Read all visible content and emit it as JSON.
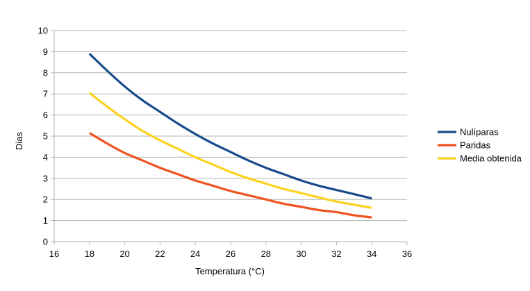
{
  "chart_data": {
    "type": "line",
    "title": "",
    "xlabel": "Temperatura (°C)",
    "ylabel": "Dias",
    "xlim": [
      16,
      36
    ],
    "ylim": [
      0,
      10
    ],
    "xticks": [
      "16",
      "18",
      "20",
      "22",
      "24",
      "26",
      "28",
      "30",
      "32",
      "34",
      "36"
    ],
    "yticks": [
      "0",
      "1",
      "2",
      "3",
      "4",
      "5",
      "6",
      "7",
      "8",
      "9",
      "10"
    ],
    "grid": "horizontal",
    "legend_position": "right",
    "series": [
      {
        "name": "Nulíparas",
        "color": "#174a8b",
        "x": [
          18,
          19,
          20,
          21,
          22,
          23,
          24,
          25,
          26,
          27,
          28,
          29,
          30,
          31,
          32,
          33,
          34
        ],
        "y": [
          8.9,
          8.1,
          7.35,
          6.7,
          6.15,
          5.6,
          5.1,
          4.65,
          4.25,
          3.85,
          3.5,
          3.2,
          2.9,
          2.65,
          2.45,
          2.25,
          2.05
        ]
      },
      {
        "name": "Paridas",
        "color": "#f0521f",
        "x": [
          18,
          19,
          20,
          21,
          22,
          23,
          24,
          25,
          26,
          27,
          28,
          29,
          30,
          31,
          32,
          33,
          34
        ],
        "y": [
          5.15,
          4.65,
          4.2,
          3.85,
          3.5,
          3.2,
          2.9,
          2.65,
          2.4,
          2.2,
          2.0,
          1.8,
          1.65,
          1.5,
          1.4,
          1.25,
          1.15
        ]
      },
      {
        "name": "Media obtenida",
        "color": "#fdd21f",
        "x": [
          18,
          19,
          20,
          21,
          22,
          23,
          24,
          25,
          26,
          27,
          28,
          29,
          30,
          31,
          32,
          33,
          34
        ],
        "y": [
          7.05,
          6.4,
          5.8,
          5.25,
          4.8,
          4.4,
          4.0,
          3.65,
          3.3,
          3.0,
          2.75,
          2.5,
          2.3,
          2.1,
          1.9,
          1.75,
          1.6
        ]
      }
    ]
  }
}
